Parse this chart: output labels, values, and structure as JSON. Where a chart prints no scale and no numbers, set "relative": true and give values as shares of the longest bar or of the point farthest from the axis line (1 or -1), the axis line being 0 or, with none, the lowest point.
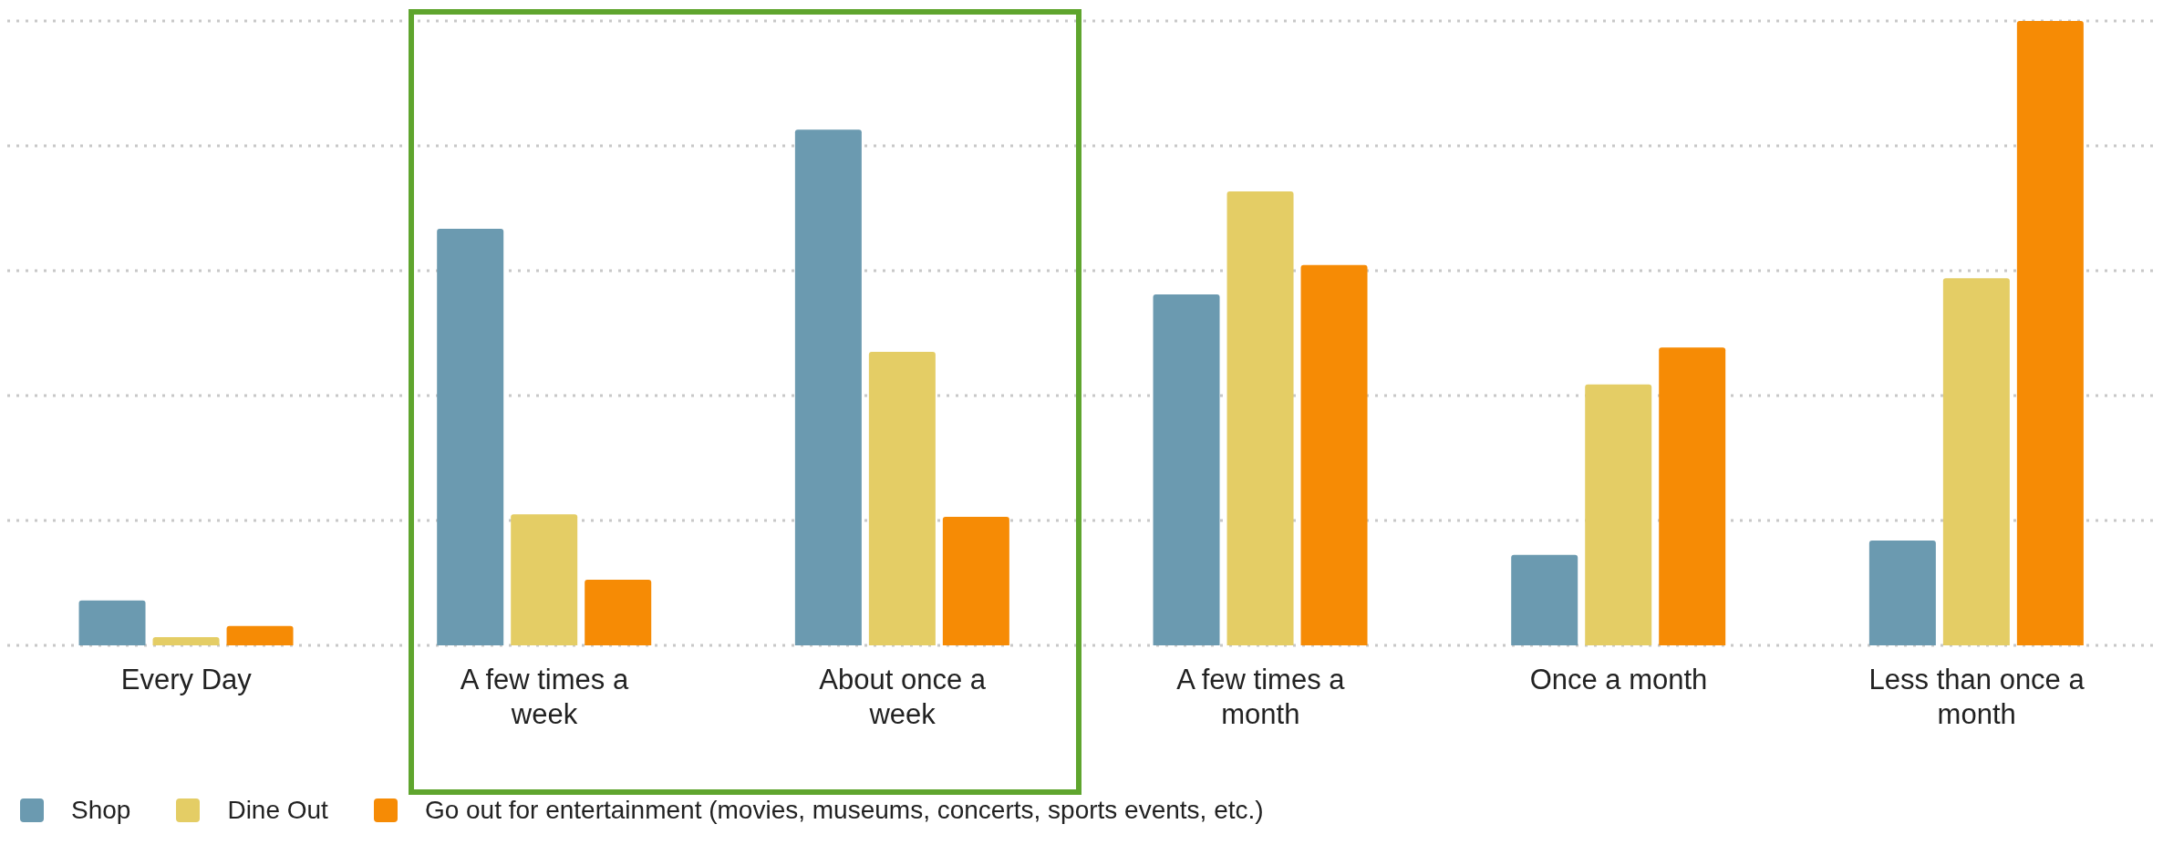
{
  "chart_data": {
    "type": "bar",
    "relative": true,
    "categories": [
      "Every Day",
      "A few times a week",
      "About once a week",
      "A few times a month",
      "Once a month",
      "Less than once a month"
    ],
    "series": [
      {
        "name": "Shop",
        "color": "#6b9ab0",
        "values": [
          0.072,
          0.667,
          0.826,
          0.562,
          0.145,
          0.168
        ]
      },
      {
        "name": "Dine Out",
        "color": "#e4cd65",
        "values": [
          0.013,
          0.21,
          0.47,
          0.727,
          0.418,
          0.588
        ]
      },
      {
        "name": "Go out for entertainment (movies, museums, concerts, sports events, etc.)",
        "color": "#f68b05",
        "values": [
          0.031,
          0.105,
          0.206,
          0.609,
          0.477,
          1
        ]
      }
    ],
    "grid": "y",
    "legend": "bottom left"
  }
}
